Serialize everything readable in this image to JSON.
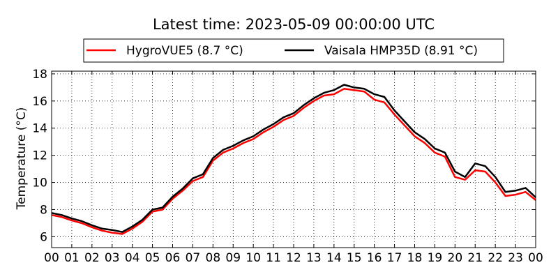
{
  "chart_data": {
    "type": "line",
    "title": "Latest time: 2023-05-09 00:00:00 UTC",
    "xlabel": "",
    "ylabel": "Temperature (°C)",
    "x_ticks": [
      "00",
      "01",
      "02",
      "03",
      "04",
      "05",
      "06",
      "07",
      "08",
      "09",
      "10",
      "11",
      "12",
      "13",
      "14",
      "15",
      "16",
      "17",
      "18",
      "19",
      "20",
      "21",
      "22",
      "23",
      "00"
    ],
    "x_unit": "hour (UTC)",
    "xlim": [
      0,
      24
    ],
    "ylim": [
      5.2,
      18.2
    ],
    "y_ticks": [
      6,
      8,
      10,
      12,
      14,
      16,
      18
    ],
    "grid": true,
    "legend_position": "top-center, above plot",
    "x": [
      0,
      0.5,
      1,
      1.5,
      2,
      2.5,
      3,
      3.5,
      4,
      4.5,
      5,
      5.5,
      6,
      6.5,
      7,
      7.5,
      8,
      8.5,
      9,
      9.5,
      10,
      10.5,
      11,
      11.5,
      12,
      12.5,
      13,
      13.5,
      14,
      14.5,
      15,
      15.5,
      16,
      16.5,
      17,
      17.5,
      18,
      18.5,
      19,
      19.5,
      20,
      20.5,
      21,
      21.5,
      22,
      22.5,
      23,
      23.5,
      24
    ],
    "series": [
      {
        "name": "HygroVUE5 (8.7 °C)",
        "color": "#ff0000",
        "values": [
          7.6,
          7.45,
          7.2,
          7.0,
          6.7,
          6.45,
          6.3,
          6.2,
          6.6,
          7.1,
          7.85,
          8.0,
          8.8,
          9.4,
          10.1,
          10.4,
          11.6,
          12.2,
          12.5,
          12.9,
          13.2,
          13.7,
          14.1,
          14.6,
          14.9,
          15.5,
          16.0,
          16.4,
          16.5,
          16.9,
          16.8,
          16.7,
          16.1,
          15.9,
          15.0,
          14.2,
          13.4,
          12.9,
          12.2,
          11.9,
          10.4,
          10.2,
          10.9,
          10.8,
          10.0,
          9.0,
          9.1,
          9.3,
          8.7
        ]
      },
      {
        "name": "Vaisala HMP35D (8.91 °C)",
        "color": "#000000",
        "values": [
          7.75,
          7.6,
          7.35,
          7.15,
          6.85,
          6.6,
          6.5,
          6.35,
          6.75,
          7.25,
          8.0,
          8.15,
          8.95,
          9.55,
          10.3,
          10.6,
          11.8,
          12.4,
          12.7,
          13.1,
          13.4,
          13.9,
          14.3,
          14.8,
          15.1,
          15.7,
          16.2,
          16.6,
          16.8,
          17.2,
          17.0,
          16.9,
          16.5,
          16.3,
          15.3,
          14.5,
          13.7,
          13.2,
          12.5,
          12.2,
          10.8,
          10.4,
          11.4,
          11.2,
          10.4,
          9.3,
          9.4,
          9.6,
          8.9
        ]
      }
    ]
  }
}
